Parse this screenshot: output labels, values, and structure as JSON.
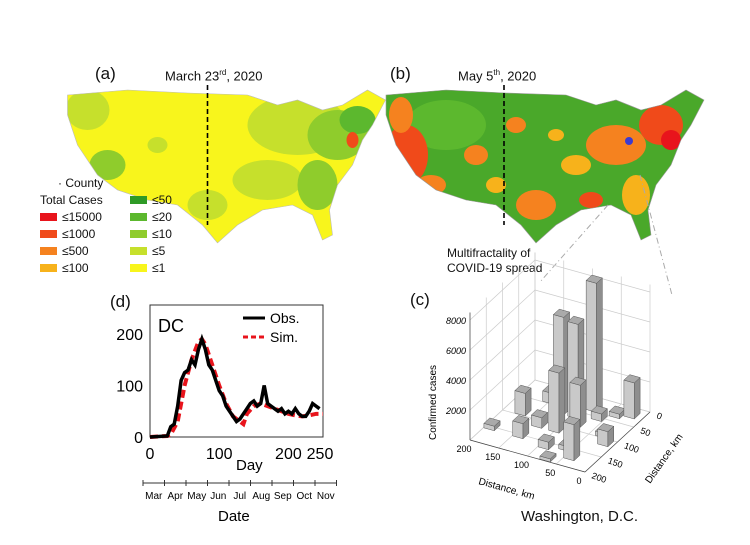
{
  "panel_a": {
    "label": "(a)",
    "title_pre": "March 23",
    "title_sup": "rd",
    "title_post": ", 2020"
  },
  "panel_b": {
    "label": "(b)",
    "title_pre": "May 5",
    "title_sup": "th",
    "title_post": ", 2020"
  },
  "legend": {
    "county_label": "County",
    "total_cases_label": "Total Cases",
    "left": [
      {
        "label": "≤15000",
        "color": "#e8141c"
      },
      {
        "label": "≤1000",
        "color": "#f04a1a"
      },
      {
        "label": "≤500",
        "color": "#f5821f"
      },
      {
        "label": "≤100",
        "color": "#f7b21b"
      }
    ],
    "right": [
      {
        "label": "≤50",
        "color": "#2e9a26"
      },
      {
        "label": "≤20",
        "color": "#5cb82e"
      },
      {
        "label": "≤10",
        "color": "#8fcc2c"
      },
      {
        "label": "≤5",
        "color": "#c6e02c"
      },
      {
        "label": "≤1",
        "color": "#f8f51c"
      }
    ]
  },
  "annotation": {
    "line1": "Multifractality of",
    "line2": "COVID-19 spread"
  },
  "chart_data": [
    {
      "type": "line",
      "panel_label": "(d)",
      "inset_title": "DC",
      "xlabel": "Day",
      "xlim": [
        0,
        250
      ],
      "ylim": [
        0,
        250
      ],
      "xticks": [
        "0",
        "100",
        "200",
        "250"
      ],
      "yticks": [
        "0",
        "100",
        "200"
      ],
      "secondary_axis": {
        "label": "Date",
        "ticks": [
          "Mar",
          "Apr",
          "May",
          "Jun",
          "Jul",
          "Aug",
          "Sep",
          "Oct",
          "Nov"
        ]
      },
      "legend_position": "top-right",
      "series": [
        {
          "name": "Obs.",
          "color": "#000000",
          "style": "solid",
          "x": [
            0,
            25,
            30,
            35,
            40,
            45,
            50,
            55,
            60,
            65,
            70,
            75,
            80,
            85,
            90,
            95,
            100,
            105,
            110,
            115,
            120,
            125,
            130,
            135,
            140,
            145,
            150,
            155,
            160,
            165,
            170,
            175,
            180,
            185,
            190,
            195,
            200,
            205,
            210,
            215,
            220,
            225,
            230,
            235,
            240,
            245
          ],
          "y": [
            0,
            2,
            20,
            25,
            60,
            110,
            125,
            130,
            150,
            140,
            170,
            190,
            170,
            140,
            130,
            110,
            90,
            80,
            60,
            50,
            40,
            30,
            35,
            45,
            55,
            65,
            70,
            60,
            65,
            100,
            65,
            60,
            55,
            50,
            55,
            45,
            50,
            45,
            55,
            45,
            40,
            40,
            50,
            65,
            60,
            55
          ]
        },
        {
          "name": "Sim.",
          "color": "#e8141c",
          "style": "dashed",
          "x": [
            0,
            25,
            30,
            40,
            50,
            60,
            70,
            75,
            80,
            90,
            100,
            110,
            120,
            130,
            135,
            140,
            150,
            160,
            170,
            180,
            190,
            200,
            210,
            220,
            230,
            240,
            250
          ],
          "y": [
            0,
            2,
            5,
            30,
            100,
            150,
            185,
            190,
            180,
            140,
            100,
            65,
            40,
            30,
            25,
            45,
            60,
            65,
            60,
            55,
            50,
            45,
            42,
            40,
            42,
            45,
            45
          ]
        }
      ]
    },
    {
      "type": "bar3d",
      "panel_label": "(c)",
      "xlabel": "Distance, km",
      "ylabel": "Distance, km",
      "zlabel": "Confirmed cases",
      "caption": "Washington, D.C.",
      "xticks": [
        "200",
        "150",
        "100",
        "50",
        "0"
      ],
      "yticks": [
        "0",
        "50",
        "100",
        "150",
        "200"
      ],
      "zticks": [
        "2000",
        "4000",
        "6000",
        "8000"
      ],
      "zlim": [
        0,
        8000
      ],
      "bars": [
        {
          "x": 150,
          "y": 40,
          "z": 700
        },
        {
          "x": 120,
          "y": 20,
          "z": 500
        },
        {
          "x": 80,
          "y": 30,
          "z": 9000
        },
        {
          "x": 120,
          "y": 60,
          "z": 6500
        },
        {
          "x": 95,
          "y": 60,
          "z": 6300
        },
        {
          "x": 60,
          "y": 50,
          "z": 500
        },
        {
          "x": 40,
          "y": 30,
          "z": 300
        },
        {
          "x": 20,
          "y": 20,
          "z": 2400
        },
        {
          "x": 170,
          "y": 90,
          "z": 1500
        },
        {
          "x": 80,
          "y": 80,
          "z": 2800
        },
        {
          "x": 100,
          "y": 110,
          "z": 4000
        },
        {
          "x": 130,
          "y": 110,
          "z": 700
        },
        {
          "x": 30,
          "y": 90,
          "z": 300
        },
        {
          "x": 15,
          "y": 110,
          "z": 1000
        },
        {
          "x": 190,
          "y": 150,
          "z": 300
        },
        {
          "x": 140,
          "y": 150,
          "z": 1000
        },
        {
          "x": 90,
          "y": 160,
          "z": 500
        },
        {
          "x": 60,
          "y": 150,
          "z": 300
        },
        {
          "x": 40,
          "y": 170,
          "z": 2400
        },
        {
          "x": 70,
          "y": 190,
          "z": 200
        }
      ]
    }
  ]
}
